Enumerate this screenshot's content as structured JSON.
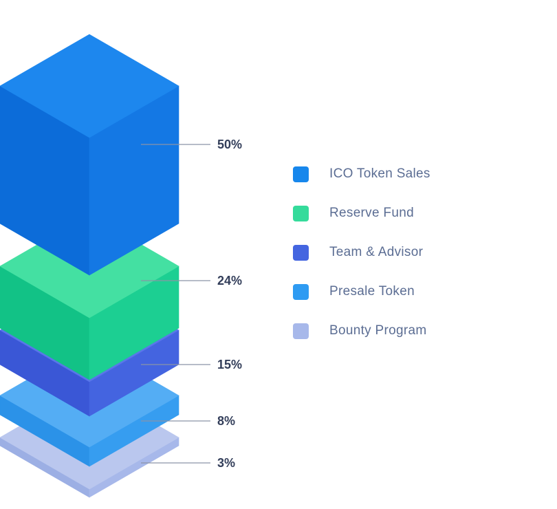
{
  "page": {
    "background": "#FFFFFF"
  },
  "chart_data": {
    "type": "pie",
    "variant": "isometric-stacked-layers",
    "legend_position": "right",
    "leader_line_color": "#8B93A6",
    "value_label_color": "#333E5A",
    "legend_text_color": "#5B6D93",
    "segments": [
      {
        "label": "ICO Token Sales",
        "value": 50,
        "value_label": "50%",
        "legend_color": "#1787EC",
        "faces": {
          "top": "#1D87EE",
          "left": "#0C6CD9",
          "right": "#1478E4"
        }
      },
      {
        "label": "Reserve Fund",
        "value": 24,
        "value_label": "24%",
        "legend_color": "#35DB9B",
        "faces": {
          "top": "#44E0A2",
          "left": "#12C286",
          "right": "#1CCF92"
        }
      },
      {
        "label": "Team & Advisor",
        "value": 15,
        "value_label": "15%",
        "legend_color": "#4465E0",
        "faces": {
          "top": "#5977E9",
          "left": "#3A57D6",
          "right": "#4464E0"
        }
      },
      {
        "label": "Presale Token",
        "value": 8,
        "value_label": "8%",
        "legend_color": "#2E9BF2",
        "faces": {
          "top": "#54ADF4",
          "left": "#2B92E8",
          "right": "#369DF0"
        }
      },
      {
        "label": "Bounty Program",
        "value": 3,
        "value_label": "3%",
        "legend_color": "#A7B8EA",
        "faces": {
          "top": "#BAC7EE",
          "left": "#9CAFE4",
          "right": "#A7B8EA"
        }
      }
    ]
  }
}
